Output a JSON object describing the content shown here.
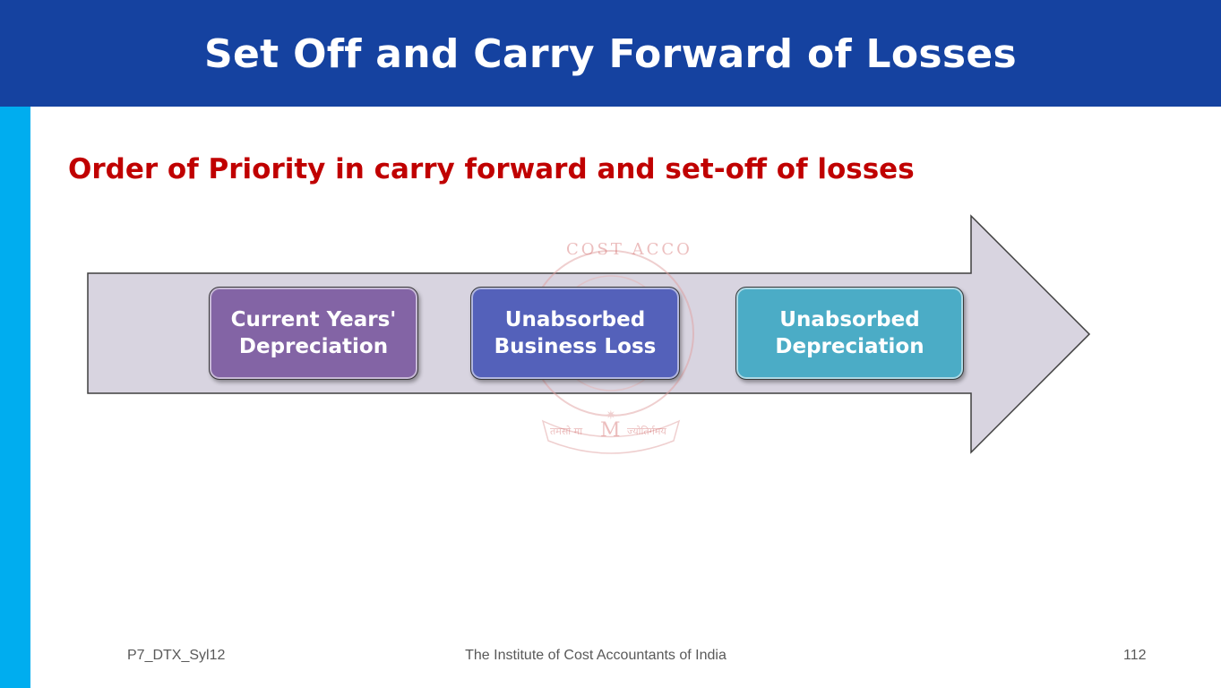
{
  "slide": {
    "title": "Set Off and Carry Forward of Losses",
    "subtitle": "Order of Priority in carry forward and set-off of losses"
  },
  "colors": {
    "header": "#1542a0",
    "side_bar": "#00adef",
    "subtitle": "#c00000",
    "arrow_fill": "#d8d4e0",
    "box_1": "#8364a5",
    "box_2": "#5461ba",
    "box_3": "#4bacc6"
  },
  "diagram": {
    "steps": [
      {
        "label": "Current Years' Depreciation"
      },
      {
        "label": "Unabsorbed Business Loss"
      },
      {
        "label": "Unabsorbed Depreciation"
      }
    ],
    "watermark": {
      "top_text": "COST ACCO",
      "emblem_letter": "M",
      "motto_left": "तमसो मा",
      "motto_right": "ज्योतिर्गमय"
    }
  },
  "footer": {
    "left": "P7_DTX_Syl12",
    "center": "The Institute of Cost Accountants of India",
    "right": "112"
  }
}
